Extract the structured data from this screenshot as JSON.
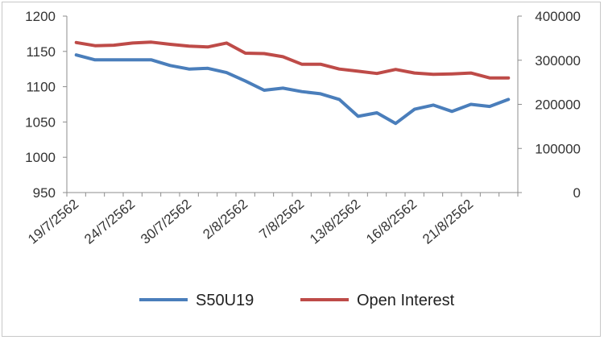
{
  "chart_data": {
    "type": "line",
    "title": "",
    "xlabel": "",
    "ylabel": "",
    "grid": false,
    "legend_position": "bottom",
    "x_tick_labels": [
      "19/7/2562",
      "24/7/2562",
      "30/7/2562",
      "2/8/2562",
      "7/8/2562",
      "13/8/2562",
      "16/8/2562",
      "21/8/2562"
    ],
    "x_tick_every": 3,
    "y_left": {
      "min": 950,
      "max": 1200,
      "ticks": [
        "950",
        "1000",
        "1050",
        "1100",
        "1150",
        "1200"
      ]
    },
    "y_right": {
      "min": 0,
      "max": 400000,
      "ticks": [
        "0",
        "100000",
        "200000",
        "300000",
        "400000"
      ]
    },
    "series": [
      {
        "name": "S50U19",
        "axis": "left",
        "color": "#4a7ebb",
        "values": [
          1145,
          1138,
          1138,
          1138,
          1138,
          1130,
          1125,
          1126,
          1120,
          1108,
          1095,
          1098,
          1093,
          1090,
          1082,
          1058,
          1063,
          1048,
          1068,
          1074,
          1065,
          1075,
          1072,
          1082
        ]
      },
      {
        "name": "Open Interest",
        "axis": "right",
        "color": "#be4b48",
        "values": [
          340000,
          333000,
          334000,
          339000,
          341000,
          336000,
          332000,
          330000,
          339000,
          316000,
          315000,
          308000,
          291000,
          291000,
          280000,
          275000,
          270000,
          279000,
          271000,
          268000,
          269000,
          271000,
          260000,
          260000
        ]
      }
    ]
  }
}
